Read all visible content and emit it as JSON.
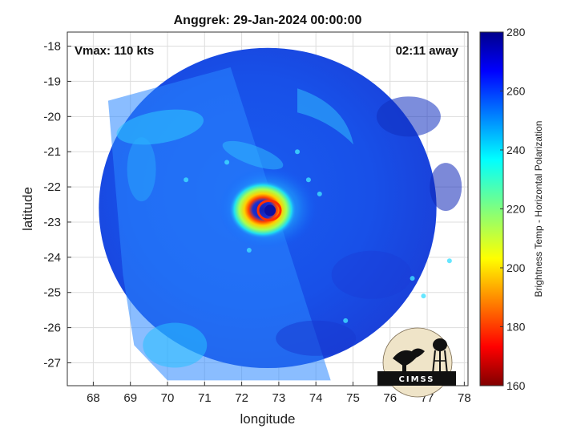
{
  "chart_data": {
    "type": "heatmap",
    "title": "Anggrek: 29-Jan-2024 00:00:00",
    "xlabel": "longitude",
    "ylabel": "latitude",
    "xlim": [
      67.3,
      78.1
    ],
    "ylim": [
      -27.65,
      -17.6
    ],
    "xticks": [
      68,
      69,
      70,
      71,
      72,
      73,
      74,
      75,
      76,
      77,
      78
    ],
    "xtick_labels": [
      "68",
      "69",
      "70",
      "71",
      "72",
      "73",
      "74",
      "75",
      "76",
      "77",
      "78"
    ],
    "yticks": [
      -18,
      -19,
      -20,
      -21,
      -22,
      -23,
      -24,
      -25,
      -26,
      -27
    ],
    "ytick_labels": [
      "-18",
      "-19",
      "-20",
      "-21",
      "-22",
      "-23",
      "-24",
      "-25",
      "-26",
      "-27"
    ],
    "grid": true,
    "annotations": {
      "vmax": "Vmax: 110 kts",
      "time_away": "02:11 away"
    },
    "storm_center": {
      "lon": 72.7,
      "lat": -22.6
    },
    "swath_radius_deg": 4.55,
    "colorbar": {
      "label": "Brightness Temp - Horizontal Polarization",
      "range": [
        160,
        280
      ],
      "ticks": [
        280,
        260,
        240,
        220,
        200,
        180,
        160
      ],
      "tick_labels": [
        "280",
        "260",
        "240",
        "220",
        "200",
        "180",
        "160"
      ],
      "colormap": "jet"
    },
    "logo": {
      "text": "CIMSS"
    }
  }
}
